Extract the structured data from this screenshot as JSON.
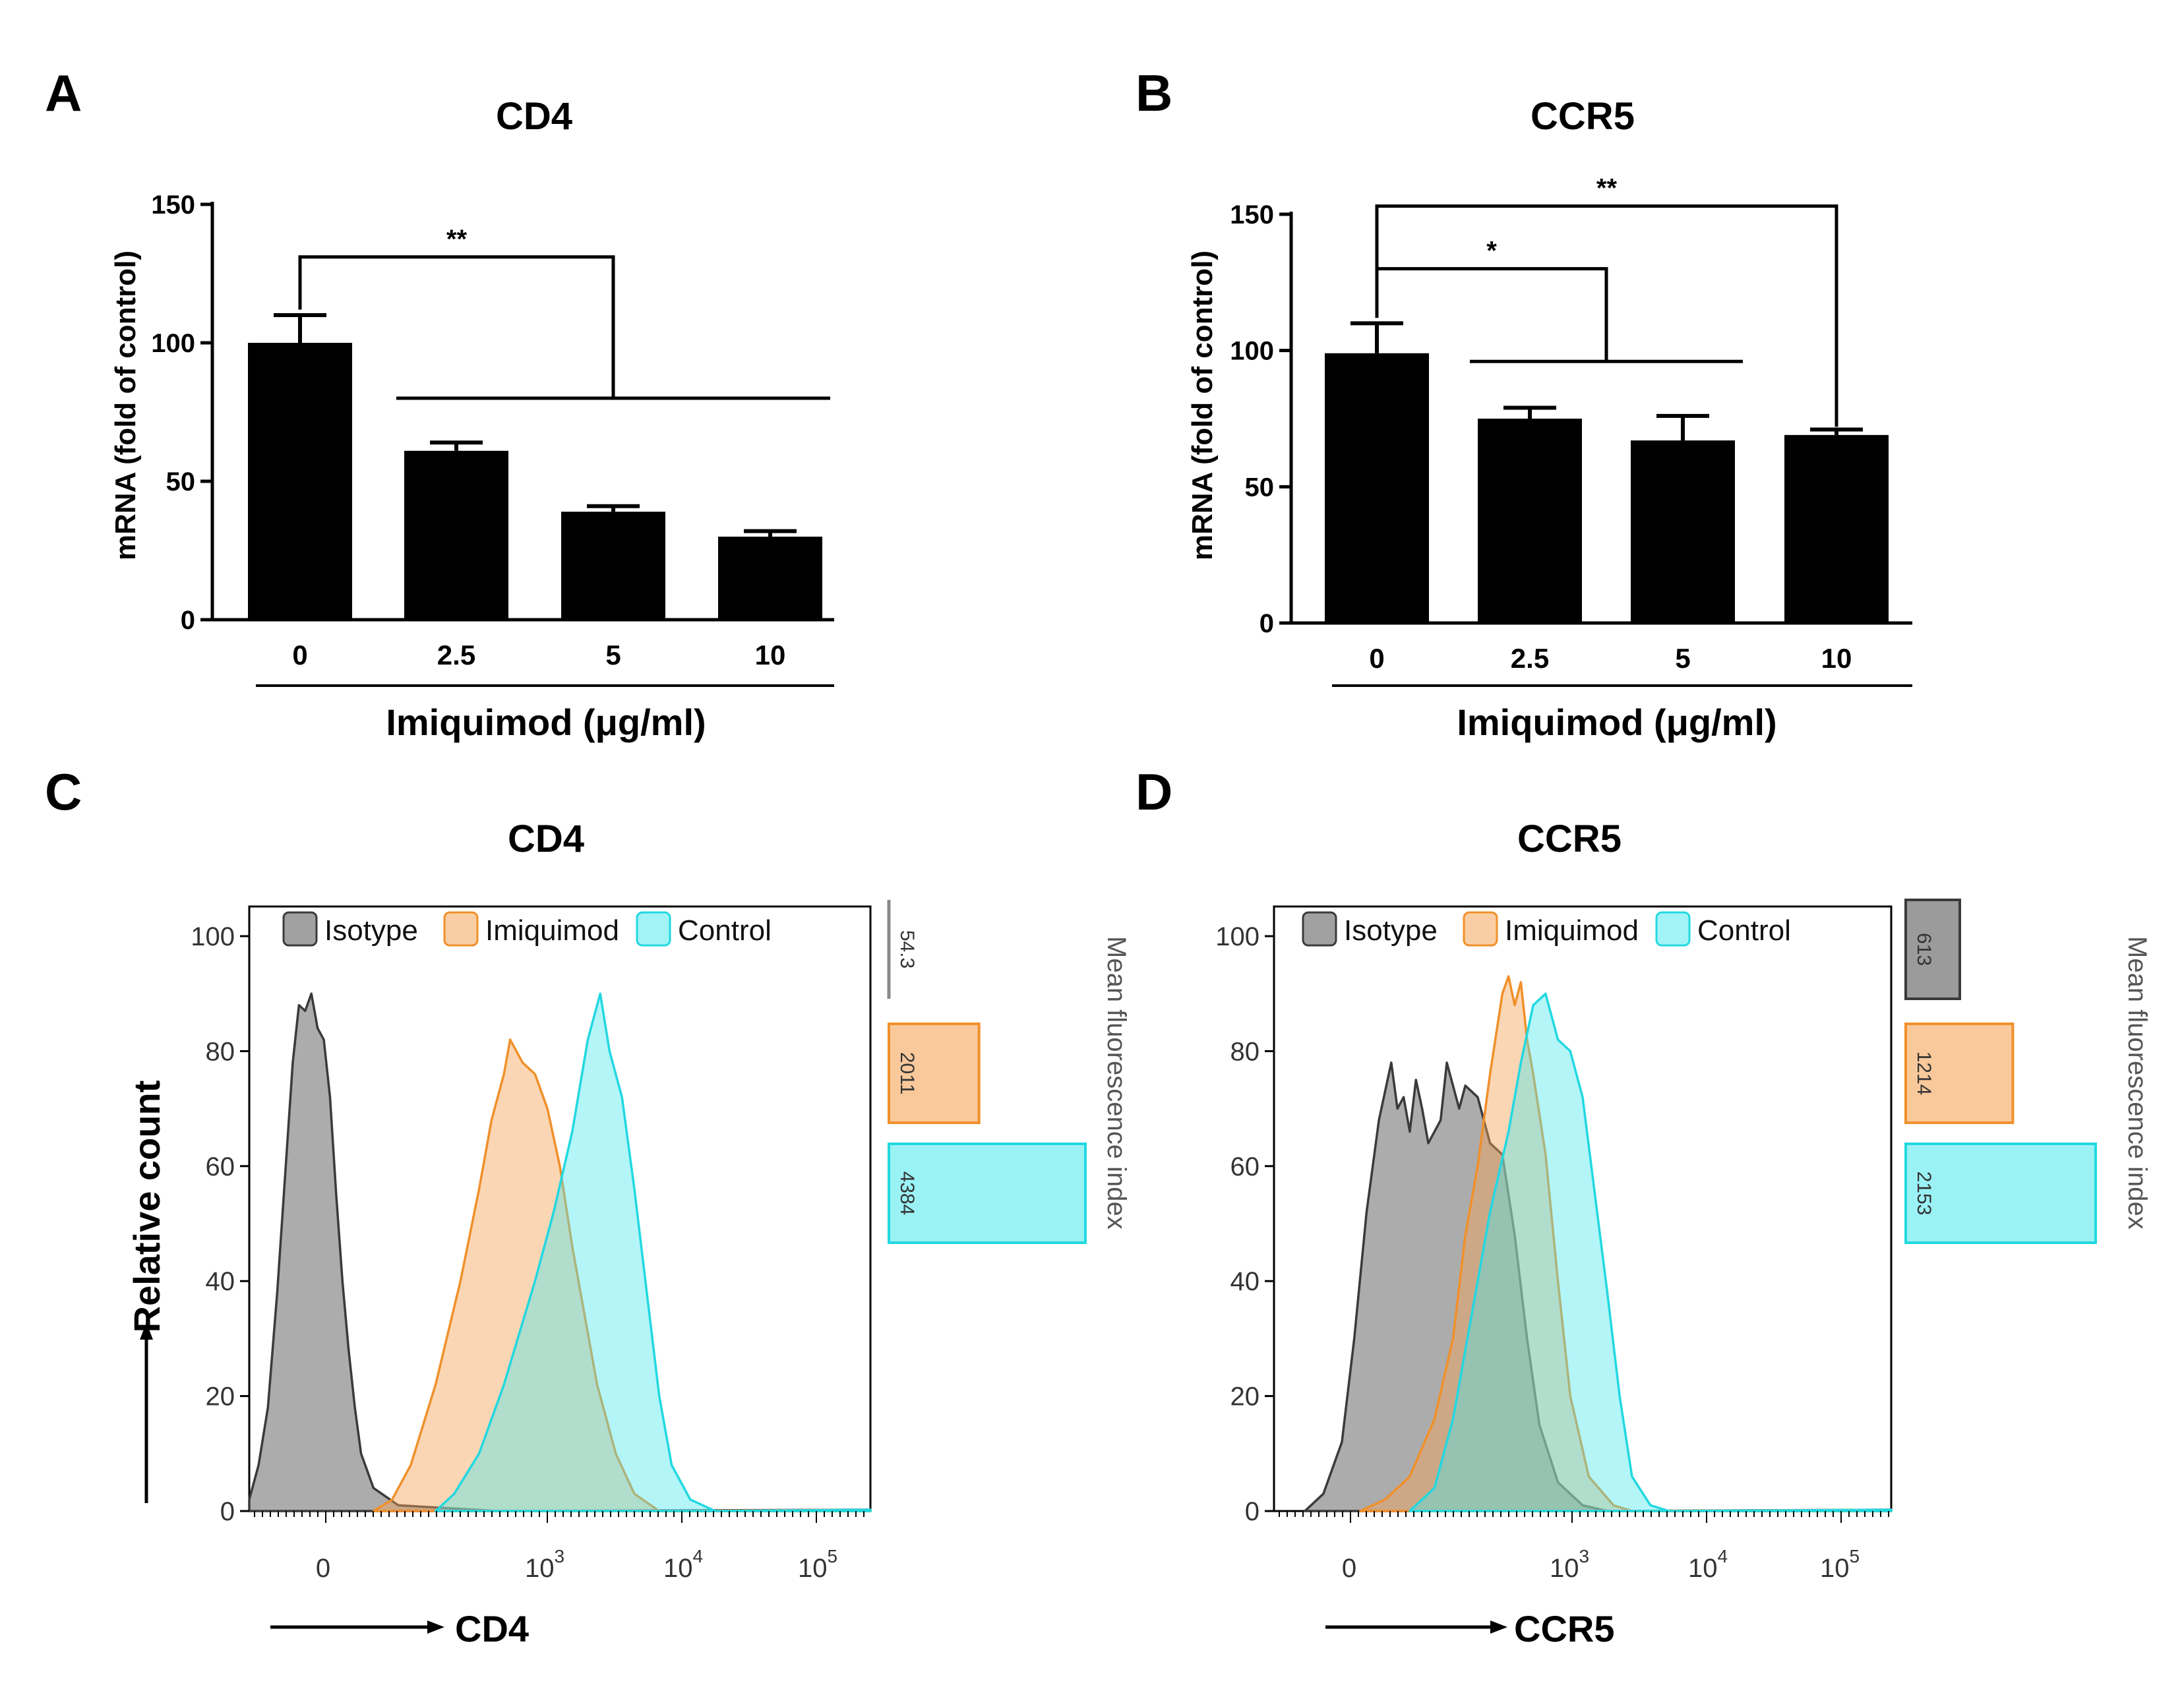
{
  "panels": {
    "A": {
      "letter": "A",
      "title": "CD4",
      "ylabel": "mRNA (fold of control)",
      "xlabel": "Imiquimod (μg/ml)"
    },
    "B": {
      "letter": "B",
      "title": "CCR5",
      "ylabel": "mRNA (fold of control)",
      "xlabel": "Imiquimod (μg/ml)"
    },
    "C": {
      "letter": "C",
      "title": "CD4",
      "ylabel": "Relative count",
      "xlabel": "CD4",
      "mfi_label": "Mean fluorescence index"
    },
    "D": {
      "letter": "D",
      "title": "CCR5",
      "ylabel": "Relative count",
      "xlabel": "CCR5",
      "mfi_label": "Mean fluorescence index"
    }
  },
  "colors": {
    "isotype": "#8c8c8c",
    "imiquimod": "#f5a55a",
    "control": "#4de8ee",
    "bar": "#000000"
  },
  "chart_data": [
    {
      "type": "bar",
      "panel": "A",
      "title": "CD4",
      "categories": [
        "0",
        "2.5",
        "5",
        "10"
      ],
      "values": [
        100,
        61,
        39,
        30
      ],
      "errors": [
        10,
        3,
        2,
        2
      ],
      "xlabel": "Imiquimod (μg/ml)",
      "ylabel": "mRNA (fold of control)",
      "ylim": [
        0,
        150
      ],
      "yticks": [
        0,
        50,
        100,
        150
      ],
      "significance": [
        {
          "from": 0,
          "to": [
            1,
            3
          ],
          "label": "**"
        }
      ]
    },
    {
      "type": "bar",
      "panel": "B",
      "title": "CCR5",
      "categories": [
        "0",
        "2.5",
        "5",
        "10"
      ],
      "values": [
        99,
        75,
        67,
        69
      ],
      "errors": [
        11,
        4,
        9,
        2
      ],
      "xlabel": "Imiquimod (μg/ml)",
      "ylabel": "mRNA (fold of control)",
      "ylim": [
        0,
        150
      ],
      "yticks": [
        0,
        50,
        100,
        150
      ],
      "significance": [
        {
          "from": 0,
          "to": [
            1,
            2
          ],
          "label": "*"
        },
        {
          "from": 0,
          "to": [
            3,
            3
          ],
          "label": "**"
        }
      ]
    },
    {
      "type": "area",
      "panel": "C",
      "title": "CD4",
      "xlabel": "CD4",
      "ylabel": "Relative count",
      "ylim": [
        0,
        100
      ],
      "yticks": [
        0,
        20,
        40,
        60,
        80,
        100
      ],
      "xticks": [
        "0",
        "10^3",
        "10^4",
        "10^5"
      ],
      "legend": [
        "Isotype",
        "Imiquimod",
        "Control"
      ],
      "series": [
        {
          "name": "Isotype",
          "points": [
            [
              0.0,
              2
            ],
            [
              0.015,
              8
            ],
            [
              0.03,
              18
            ],
            [
              0.045,
              38
            ],
            [
              0.06,
              62
            ],
            [
              0.07,
              78
            ],
            [
              0.08,
              88
            ],
            [
              0.09,
              87
            ],
            [
              0.1,
              90
            ],
            [
              0.11,
              84
            ],
            [
              0.12,
              82
            ],
            [
              0.13,
              72
            ],
            [
              0.14,
              55
            ],
            [
              0.15,
              40
            ],
            [
              0.16,
              28
            ],
            [
              0.17,
              18
            ],
            [
              0.18,
              10
            ],
            [
              0.2,
              4
            ],
            [
              0.24,
              1
            ],
            [
              0.4,
              0
            ]
          ]
        },
        {
          "name": "Imiquimod",
          "points": [
            [
              0.2,
              0
            ],
            [
              0.23,
              2
            ],
            [
              0.26,
              8
            ],
            [
              0.3,
              22
            ],
            [
              0.34,
              40
            ],
            [
              0.37,
              56
            ],
            [
              0.39,
              68
            ],
            [
              0.41,
              76
            ],
            [
              0.42,
              82
            ],
            [
              0.44,
              78
            ],
            [
              0.46,
              76
            ],
            [
              0.48,
              70
            ],
            [
              0.5,
              60
            ],
            [
              0.52,
              46
            ],
            [
              0.54,
              34
            ],
            [
              0.56,
              22
            ],
            [
              0.59,
              10
            ],
            [
              0.62,
              3
            ],
            [
              0.66,
              0
            ]
          ]
        },
        {
          "name": "Control",
          "points": [
            [
              0.3,
              0
            ],
            [
              0.33,
              3
            ],
            [
              0.37,
              10
            ],
            [
              0.41,
              22
            ],
            [
              0.46,
              40
            ],
            [
              0.49,
              52
            ],
            [
              0.52,
              66
            ],
            [
              0.545,
              82
            ],
            [
              0.565,
              90
            ],
            [
              0.58,
              80
            ],
            [
              0.6,
              72
            ],
            [
              0.62,
              56
            ],
            [
              0.64,
              38
            ],
            [
              0.66,
              20
            ],
            [
              0.68,
              8
            ],
            [
              0.71,
              2
            ],
            [
              0.75,
              0
            ]
          ]
        }
      ],
      "mfi": [
        {
          "name": "Isotype",
          "value": 54.3,
          "label": "54.3"
        },
        {
          "name": "Imiquimod",
          "value": 2011,
          "label": "2011"
        },
        {
          "name": "Control",
          "value": 4384,
          "label": "4384"
        }
      ]
    },
    {
      "type": "area",
      "panel": "D",
      "title": "CCR5",
      "xlabel": "CCR5",
      "ylabel": "Relative count",
      "ylim": [
        0,
        100
      ],
      "yticks": [
        0,
        20,
        40,
        60,
        80,
        100
      ],
      "xticks": [
        "0",
        "10^3",
        "10^4",
        "10^5"
      ],
      "legend": [
        "Isotype",
        "Imiquimod",
        "Control"
      ],
      "series": [
        {
          "name": "Isotype",
          "points": [
            [
              0.05,
              0
            ],
            [
              0.08,
              3
            ],
            [
              0.11,
              12
            ],
            [
              0.13,
              30
            ],
            [
              0.15,
              52
            ],
            [
              0.17,
              68
            ],
            [
              0.19,
              78
            ],
            [
              0.2,
              70
            ],
            [
              0.21,
              72
            ],
            [
              0.22,
              66
            ],
            [
              0.23,
              75
            ],
            [
              0.24,
              70
            ],
            [
              0.25,
              64
            ],
            [
              0.27,
              68
            ],
            [
              0.28,
              78
            ],
            [
              0.3,
              70
            ],
            [
              0.31,
              74
            ],
            [
              0.33,
              72
            ],
            [
              0.35,
              64
            ],
            [
              0.37,
              62
            ],
            [
              0.39,
              48
            ],
            [
              0.41,
              30
            ],
            [
              0.43,
              15
            ],
            [
              0.46,
              5
            ],
            [
              0.5,
              1
            ],
            [
              0.54,
              0
            ]
          ]
        },
        {
          "name": "Imiquimod",
          "points": [
            [
              0.14,
              0
            ],
            [
              0.18,
              2
            ],
            [
              0.22,
              6
            ],
            [
              0.26,
              16
            ],
            [
              0.29,
              30
            ],
            [
              0.31,
              48
            ],
            [
              0.33,
              60
            ],
            [
              0.35,
              76
            ],
            [
              0.37,
              90
            ],
            [
              0.38,
              93
            ],
            [
              0.39,
              88
            ],
            [
              0.4,
              92
            ],
            [
              0.41,
              82
            ],
            [
              0.42,
              76
            ],
            [
              0.44,
              62
            ],
            [
              0.46,
              40
            ],
            [
              0.48,
              20
            ],
            [
              0.51,
              6
            ],
            [
              0.55,
              1
            ],
            [
              0.58,
              0
            ]
          ]
        },
        {
          "name": "Control",
          "points": [
            [
              0.22,
              0
            ],
            [
              0.26,
              4
            ],
            [
              0.29,
              16
            ],
            [
              0.32,
              34
            ],
            [
              0.35,
              52
            ],
            [
              0.38,
              66
            ],
            [
              0.4,
              78
            ],
            [
              0.42,
              88
            ],
            [
              0.44,
              90
            ],
            [
              0.46,
              82
            ],
            [
              0.48,
              80
            ],
            [
              0.5,
              72
            ],
            [
              0.52,
              55
            ],
            [
              0.54,
              38
            ],
            [
              0.56,
              20
            ],
            [
              0.58,
              6
            ],
            [
              0.61,
              1
            ],
            [
              0.64,
              0
            ]
          ]
        }
      ],
      "mfi": [
        {
          "name": "Isotype",
          "value": 613,
          "label": "613"
        },
        {
          "name": "Imiquimod",
          "value": 1214,
          "label": "1214"
        },
        {
          "name": "Control",
          "value": 2153,
          "label": "2153"
        }
      ]
    }
  ]
}
